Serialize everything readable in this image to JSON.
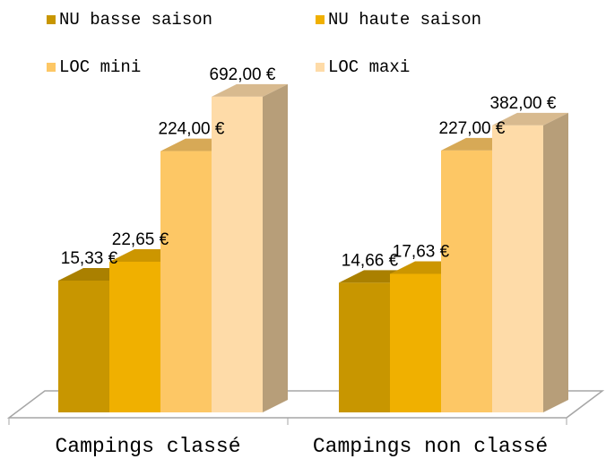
{
  "chart_data": {
    "type": "bar3d",
    "categories": [
      "Campings classé",
      "Campings non classé"
    ],
    "series": [
      {
        "name": "NU basse saison",
        "color": "#c89600",
        "values": [
          15.33,
          14.66
        ],
        "value_labels": [
          "15,33 €",
          "14,66 €"
        ]
      },
      {
        "name": "NU haute saison",
        "color": "#f0b000",
        "values": [
          22.65,
          17.63
        ],
        "value_labels": [
          "22,65 €",
          "17,63 €"
        ]
      },
      {
        "name": "LOC mini",
        "color": "#fdc765",
        "values": [
          224,
          227
        ],
        "value_labels": [
          "224,00 €",
          "227,00 €"
        ]
      },
      {
        "name": "LOC maxi",
        "color": "#fedba8",
        "values": [
          692,
          382
        ],
        "value_labels": [
          "692,00 €",
          "382,00 €"
        ]
      }
    ],
    "log": true,
    "ylim": [
      1,
      1000
    ],
    "legend": "top"
  }
}
